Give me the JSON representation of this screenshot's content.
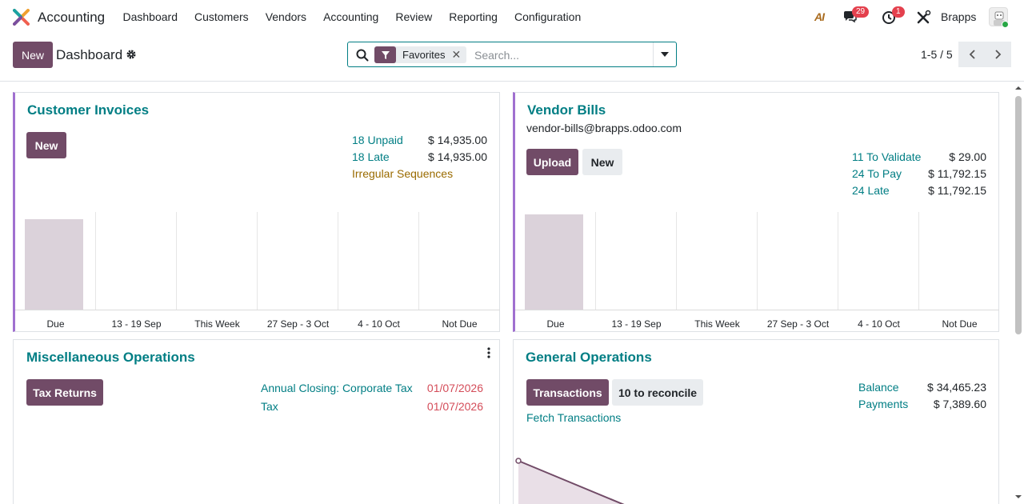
{
  "app": {
    "name": "Accounting",
    "logo_icon": "odoo-accounting-logo-icon"
  },
  "menu": [
    "Dashboard",
    "Customers",
    "Vendors",
    "Accounting",
    "Review",
    "Reporting",
    "Configuration"
  ],
  "systray": {
    "ai_label": "AI",
    "messages_count": "29",
    "activities_count": "1",
    "company": "Brapps"
  },
  "control": {
    "new_label": "New",
    "breadcrumb": "Dashboard",
    "facet_label": "Favorites",
    "search_placeholder": "Search...",
    "pager": "1-5 / 5"
  },
  "customer_invoices": {
    "title": "Customer Invoices",
    "new_label": "New",
    "stats": [
      {
        "label": "18 Unpaid",
        "value": "$ 14,935.00"
      },
      {
        "label": "18 Late",
        "value": "$ 14,935.00"
      }
    ],
    "warning": "Irregular Sequences",
    "chart_labels": [
      "Due",
      "13 - 19 Sep",
      "This Week",
      "27 Sep - 3 Oct",
      "4 - 10 Oct",
      "Not Due"
    ]
  },
  "vendor_bills": {
    "title": "Vendor Bills",
    "email": "vendor-bills@brapps.odoo.com",
    "upload_label": "Upload",
    "new_label": "New",
    "stats": [
      {
        "label": "11 To Validate",
        "value": "$ 29.00"
      },
      {
        "label": "24 To Pay",
        "value": "$ 11,792.15"
      },
      {
        "label": "24 Late",
        "value": "$ 11,792.15"
      }
    ],
    "chart_labels": [
      "Due",
      "13 - 19 Sep",
      "This Week",
      "27 Sep - 3 Oct",
      "4 - 10 Oct",
      "Not Due"
    ]
  },
  "misc_operations": {
    "title": "Miscellaneous Operations",
    "tax_returns_label": "Tax Returns",
    "items": [
      {
        "label": "Annual Closing: Corporate Tax",
        "date": "01/07/2026"
      },
      {
        "label": "Tax",
        "date": "01/07/2026"
      }
    ]
  },
  "general_operations": {
    "title": "General Operations",
    "transactions_label": "Transactions",
    "reconcile_label": "10 to reconcile",
    "fetch_label": "Fetch Transactions",
    "stats": [
      {
        "label": "Balance",
        "value": "$ 34,465.23"
      },
      {
        "label": "Payments",
        "value": "$ 7,389.60"
      }
    ]
  },
  "colors": {
    "primary": "#714b67",
    "link": "#017e84",
    "accent_border": "#a070d0",
    "danger": "#d44c59",
    "bar": "#dbd2da"
  }
}
